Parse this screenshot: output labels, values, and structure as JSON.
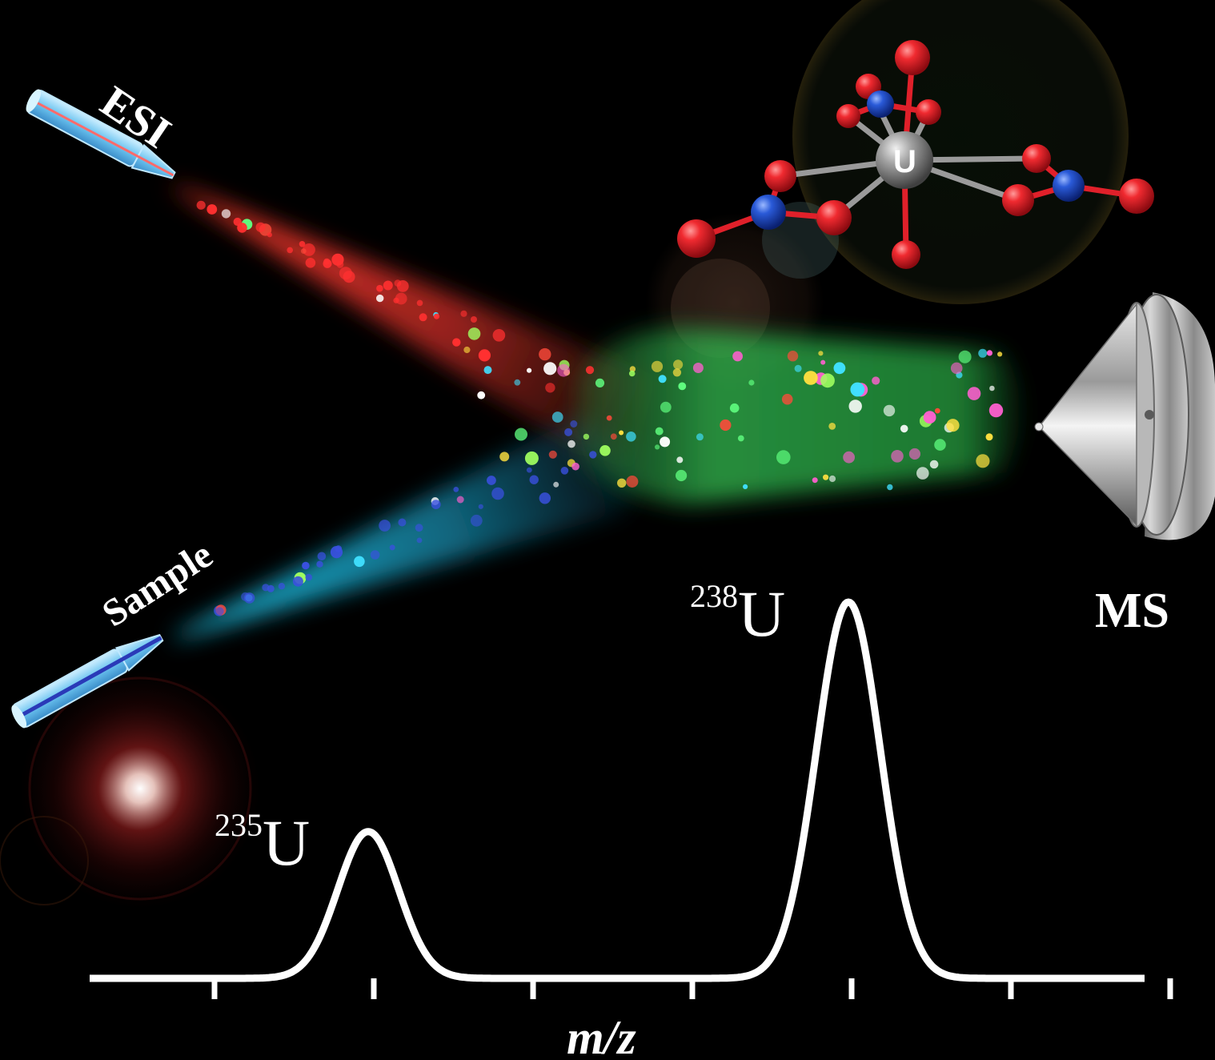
{
  "labels": {
    "esi": "ESI",
    "sample": "Sample",
    "ms": "MS",
    "axis": "m/z",
    "atom_center": "U"
  },
  "peaks": [
    {
      "isotope_mass": "235",
      "element": "U",
      "relative_height": 0.39
    },
    {
      "isotope_mass": "238",
      "element": "U",
      "relative_height": 1.0
    }
  ],
  "axis_ticks": 7,
  "colors": {
    "background": "#000000",
    "esi_spray": "#d8302a",
    "sample_spray": "#1fb6d8",
    "merged_plume": "#2eb24a",
    "oxygen": "#e0202a",
    "nitrogen": "#2050c8",
    "uranium": "#9a9a9a",
    "spectrum_line": "#ffffff"
  },
  "icons": [
    "esi-capillary-icon",
    "sample-capillary-icon",
    "ms-inlet-cone-icon",
    "uranyl-nitrate-molecule-icon"
  ]
}
